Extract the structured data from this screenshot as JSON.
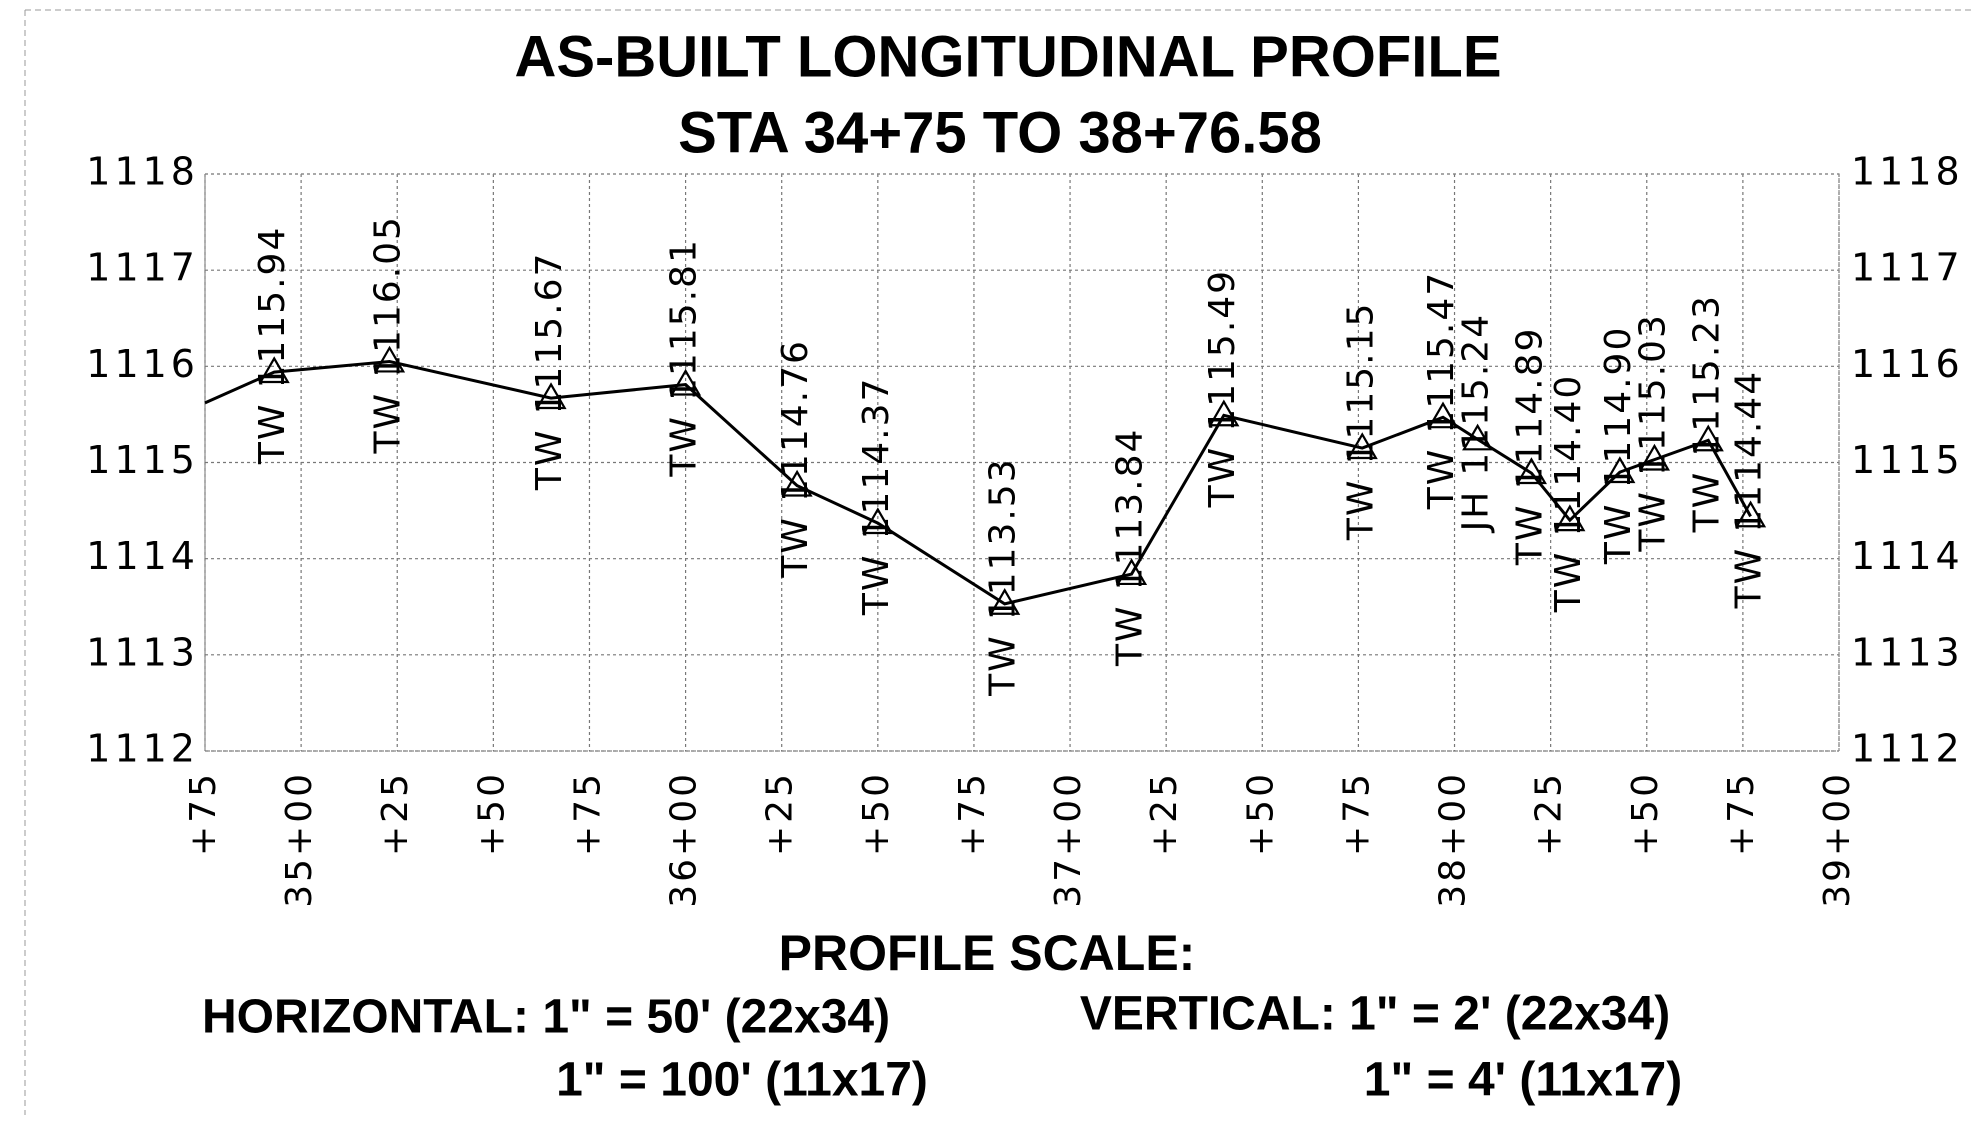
{
  "chart_data": {
    "type": "line",
    "title": "AS-BUILT LONGITUDINAL PROFILE",
    "subtitle": "STA 34+75 TO 38+76.58",
    "x": [
      3475,
      3493,
      3523,
      3565,
      3600,
      3629,
      3650,
      3683,
      3716,
      3740,
      3776,
      3797,
      3806,
      3820,
      3830,
      3843,
      3852,
      3866,
      3877
    ],
    "series": [
      {
        "color": "#000000",
        "values": [
          1115.62,
          1115.94,
          1116.05,
          1115.67,
          1115.81,
          1114.76,
          1114.37,
          1113.53,
          1113.84,
          1115.49,
          1115.15,
          1115.47,
          1115.24,
          1114.89,
          1114.4,
          1114.9,
          1115.03,
          1115.23,
          1114.44
        ],
        "value_labels": [
          null,
          "1115.94",
          "1116.05",
          "1115.67",
          "1115.81",
          "1114.76",
          "1114.37",
          "1113.53",
          "1113.84",
          "1115.49",
          "1115.15",
          "1115.47",
          "1115.24",
          "1114.89",
          "1114.40",
          "1114.90",
          "1115.03",
          "1115.23",
          "1114.44"
        ],
        "point_types": [
          null,
          "TW",
          "TW",
          "TW",
          "TW",
          "TW",
          "TW",
          "TW",
          "TW",
          "TW",
          "TW",
          "TW",
          "JH",
          "TW",
          "TW",
          "TW",
          "TW",
          "TW",
          "TW"
        ]
      }
    ],
    "xlim": [
      3475,
      3900
    ],
    "xticks": [
      {
        "value": 3475,
        "label": "+75"
      },
      {
        "value": 3500,
        "label": "35+00"
      },
      {
        "value": 3525,
        "label": "+25"
      },
      {
        "value": 3550,
        "label": "+50"
      },
      {
        "value": 3575,
        "label": "+75"
      },
      {
        "value": 3600,
        "label": "36+00"
      },
      {
        "value": 3625,
        "label": "+25"
      },
      {
        "value": 3650,
        "label": "+50"
      },
      {
        "value": 3675,
        "label": "+75"
      },
      {
        "value": 3700,
        "label": "37+00"
      },
      {
        "value": 3725,
        "label": "+25"
      },
      {
        "value": 3750,
        "label": "+50"
      },
      {
        "value": 3775,
        "label": "+75"
      },
      {
        "value": 3800,
        "label": "38+00"
      },
      {
        "value": 3825,
        "label": "+25"
      },
      {
        "value": 3850,
        "label": "+50"
      },
      {
        "value": 3875,
        "label": "+75"
      },
      {
        "value": 3900,
        "label": "39+00"
      }
    ],
    "ylim": [
      1112,
      1118
    ],
    "yticks": [
      1112,
      1113,
      1114,
      1115,
      1116,
      1117,
      1118
    ],
    "grid": true,
    "right_axis": true,
    "notes": {
      "heading": "PROFILE SCALE:",
      "horizontal_1": "HORIZONTAL: 1\" = 50' (22x34)",
      "horizontal_2": "1\" = 100' (11x17)",
      "vertical_1": "VERTICAL: 1\" = 2' (22x34)",
      "vertical_2": "1\" = 4' (11x17)"
    }
  }
}
